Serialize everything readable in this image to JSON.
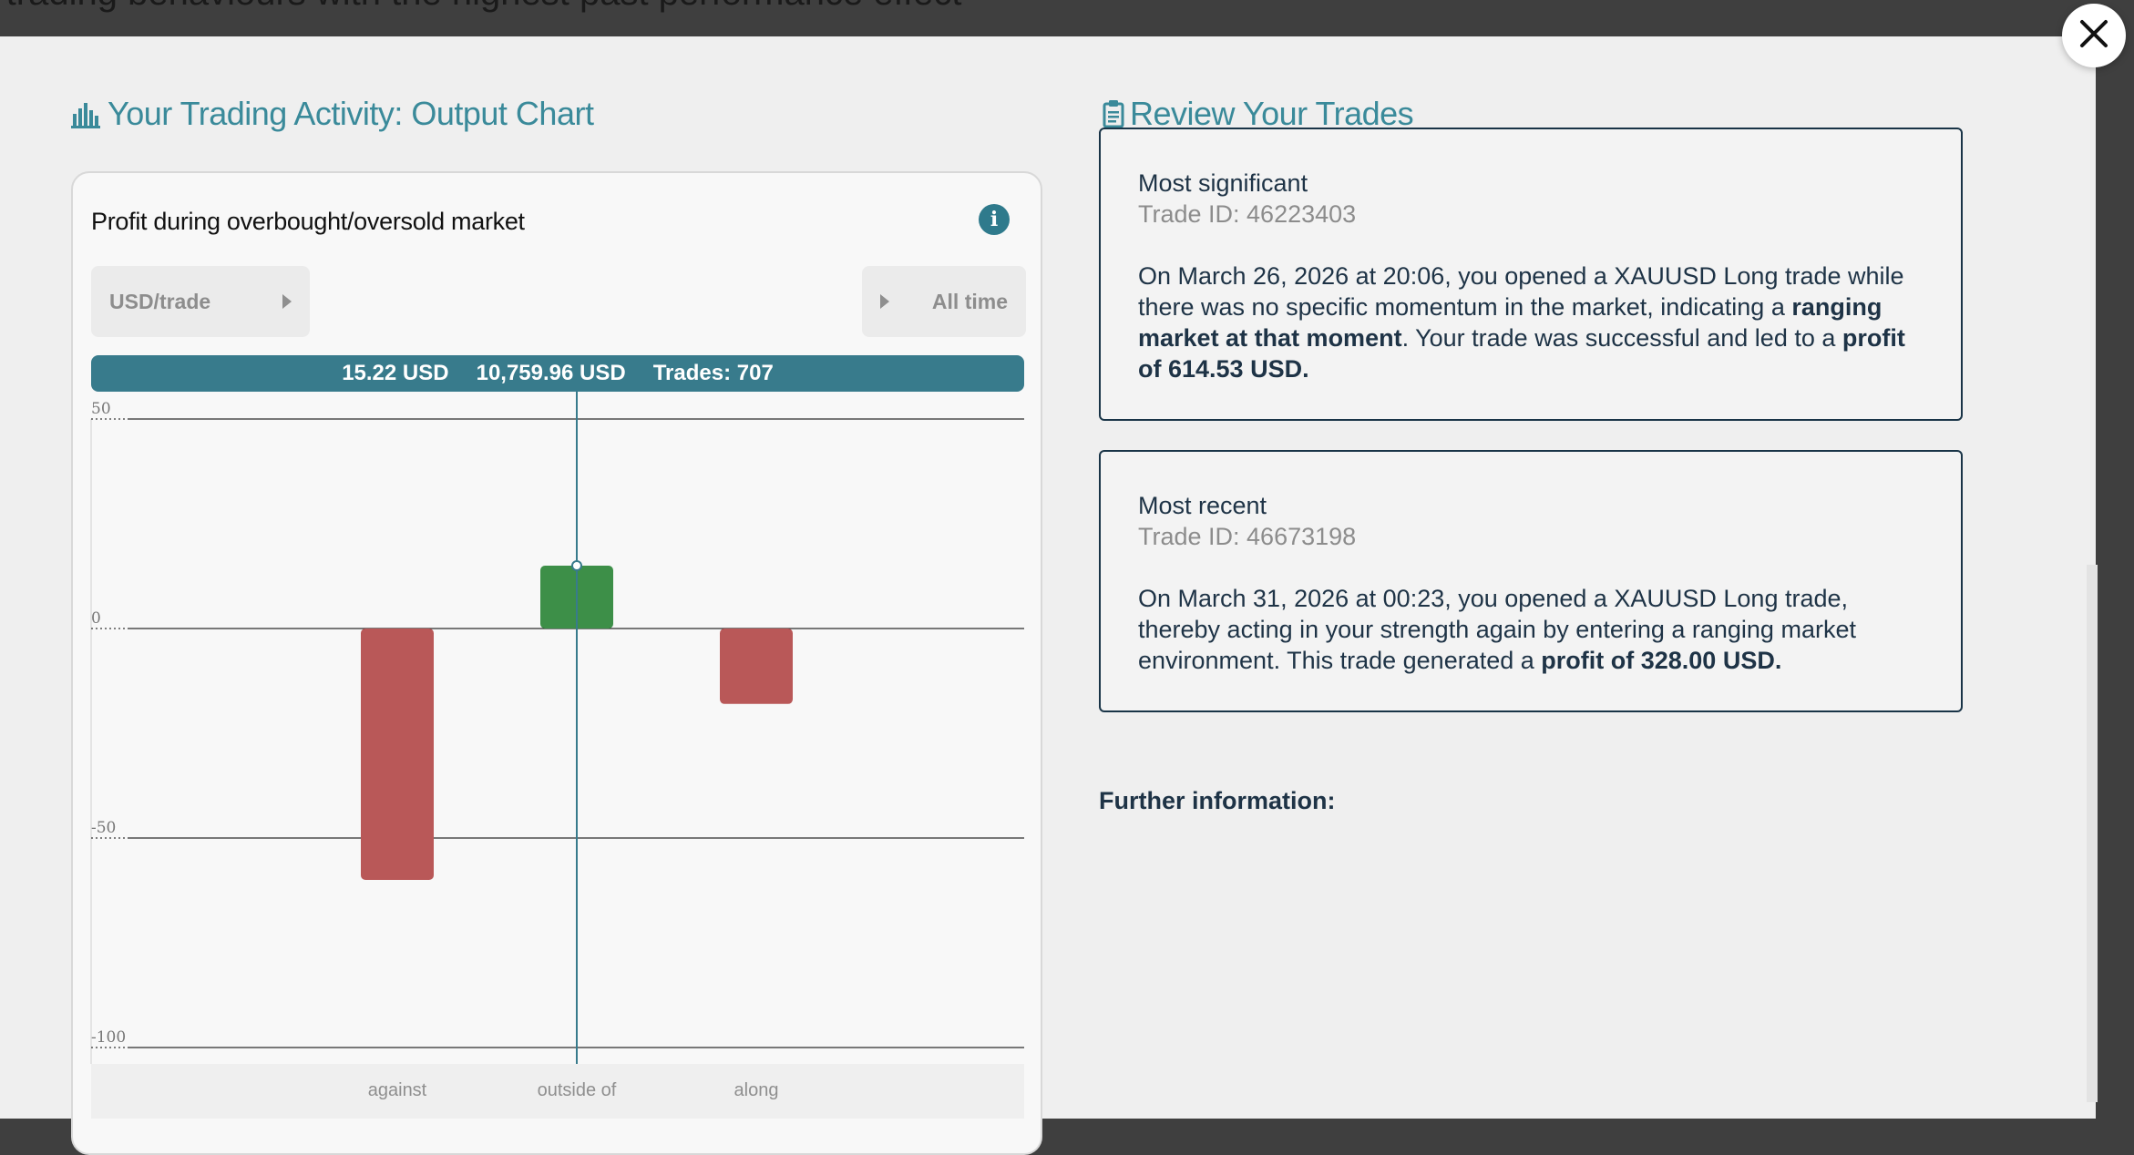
{
  "background_text": "ur trading behaviours with the highest past performance effect",
  "chart_section": {
    "title": "Your Trading Activity: Output Chart",
    "icon": "bar-chart-icon",
    "card_title": "Profit during overbought/oversold market",
    "unit_selector": "USD/trade",
    "period_selector": "All time",
    "summary": {
      "avg": "15.22 USD",
      "total": "10,759.96 USD",
      "trades": "Trades: 707"
    }
  },
  "review_section": {
    "title": "Review Your Trades",
    "icon": "clipboard-icon",
    "significant": {
      "heading": "Most significant",
      "trade_id": "Trade ID: 46223403",
      "text_1": "On March 26, 2026 at 20:06, you opened a XAUUSD Long trade while there was no specific momentum in the market, indicating a ",
      "bold_1": "ranging market at that moment",
      "text_2": ". Your trade was successful and led to a ",
      "bold_2": "profit of 614.53 USD."
    },
    "recent": {
      "heading": "Most recent",
      "trade_id": "Trade ID: 46673198",
      "text_1": "On March 31, 2026 at 00:23, you opened a XAUUSD Long trade, thereby acting in your strength again by entering a ranging market environment. This trade generated a ",
      "bold_1": "profit of 328.00 USD."
    },
    "further_info": "Further information:"
  },
  "colors": {
    "accent": "#3a8a9a",
    "positive": "#3d8f48",
    "negative": "#b95858",
    "summary_bar": "#387b8c"
  },
  "chart_data": {
    "type": "bar",
    "categories": [
      "against",
      "outside of",
      "along"
    ],
    "values": [
      -60,
      15,
      -18
    ],
    "ylim": [
      -100,
      50
    ],
    "yticks": [
      50,
      0,
      -50,
      -100
    ],
    "ytick_labels": [
      "50",
      "0",
      "-50",
      "-100"
    ],
    "highlighted_category": "outside of",
    "title": "Profit during overbought/oversold market",
    "xlabel": "",
    "ylabel": ""
  }
}
